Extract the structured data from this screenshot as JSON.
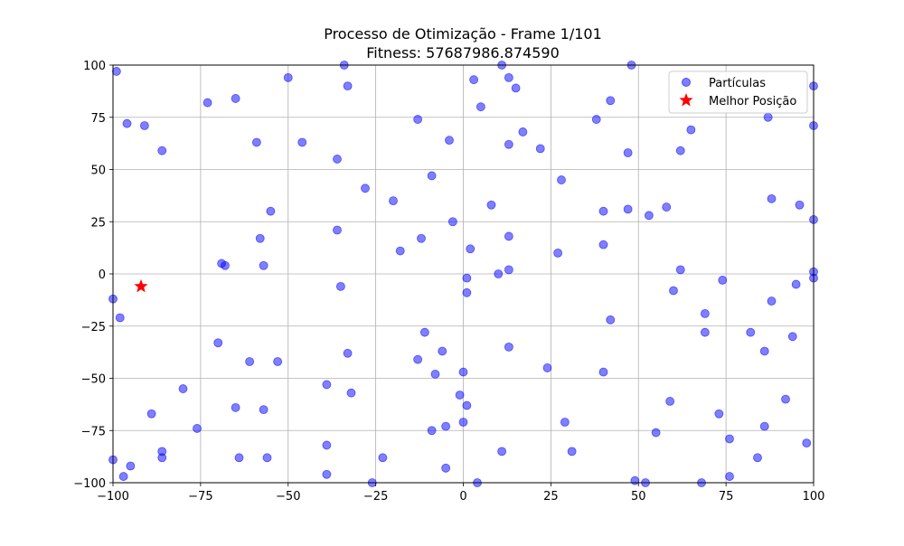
{
  "chart_data": {
    "type": "scatter",
    "title": "Processo de Otimização - Frame 1/101",
    "subtitle": "Fitness: 57687986.874590",
    "xlabel": "",
    "ylabel": "",
    "xlim": [
      -100,
      100
    ],
    "ylim": [
      -100,
      100
    ],
    "x_ticks": [
      -100,
      -75,
      -50,
      -25,
      0,
      25,
      50,
      75,
      100
    ],
    "y_ticks": [
      -100,
      -75,
      -50,
      -25,
      0,
      25,
      50,
      75,
      100
    ],
    "grid": true,
    "legend_position": "top-right",
    "series": [
      {
        "name": "Partículas",
        "marker": "circle",
        "color": "#0000ff",
        "alpha": 0.5,
        "points": [
          [
            -99,
            97
          ],
          [
            -96,
            72
          ],
          [
            -91,
            71
          ],
          [
            -86,
            59
          ],
          [
            -73,
            82
          ],
          [
            -65,
            84
          ],
          [
            -59,
            63
          ],
          [
            -50,
            94
          ],
          [
            -46,
            63
          ],
          [
            -36,
            55
          ],
          [
            -34,
            100
          ],
          [
            -33,
            90
          ],
          [
            -28,
            41
          ],
          [
            -20,
            35
          ],
          [
            -13,
            74
          ],
          [
            -9,
            47
          ],
          [
            -4,
            64
          ],
          [
            3,
            93
          ],
          [
            5,
            80
          ],
          [
            11,
            100
          ],
          [
            13,
            94
          ],
          [
            15,
            89
          ],
          [
            17,
            68
          ],
          [
            13,
            62
          ],
          [
            22,
            60
          ],
          [
            28,
            45
          ],
          [
            38,
            74
          ],
          [
            42,
            83
          ],
          [
            47,
            58
          ],
          [
            48,
            100
          ],
          [
            62,
            59
          ],
          [
            65,
            69
          ],
          [
            87,
            75
          ],
          [
            100,
            90
          ],
          [
            100,
            71
          ],
          [
            88,
            36
          ],
          [
            96,
            33
          ],
          [
            100,
            26
          ],
          [
            -69,
            5
          ],
          [
            -68,
            4
          ],
          [
            -58,
            17
          ],
          [
            -57,
            4
          ],
          [
            -55,
            30
          ],
          [
            -36,
            21
          ],
          [
            -35,
            -6
          ],
          [
            -18,
            11
          ],
          [
            -12,
            17
          ],
          [
            -3,
            25
          ],
          [
            2,
            12
          ],
          [
            8,
            33
          ],
          [
            13,
            18
          ],
          [
            27,
            10
          ],
          [
            40,
            30
          ],
          [
            40,
            14
          ],
          [
            47,
            31
          ],
          [
            53,
            28
          ],
          [
            58,
            32
          ],
          [
            62,
            2
          ],
          [
            1,
            -2
          ],
          [
            1,
            -9
          ],
          [
            10,
            0
          ],
          [
            13,
            2
          ],
          [
            60,
            -8
          ],
          [
            74,
            -3
          ],
          [
            69,
            -19
          ],
          [
            100,
            1
          ],
          [
            100,
            -2
          ],
          [
            95,
            -5
          ],
          [
            88,
            -13
          ],
          [
            -100,
            -12
          ],
          [
            -98,
            -21
          ],
          [
            -70,
            -33
          ],
          [
            -61,
            -42
          ],
          [
            -53,
            -42
          ],
          [
            -33,
            -38
          ],
          [
            -11,
            -28
          ],
          [
            -13,
            -41
          ],
          [
            -8,
            -48
          ],
          [
            -6,
            -37
          ],
          [
            0,
            -47
          ],
          [
            13,
            -35
          ],
          [
            24,
            -45
          ],
          [
            40,
            -47
          ],
          [
            42,
            -22
          ],
          [
            69,
            -28
          ],
          [
            82,
            -28
          ],
          [
            86,
            -37
          ],
          [
            94,
            -30
          ],
          [
            -39,
            -53
          ],
          [
            -32,
            -57
          ],
          [
            -65,
            -64
          ],
          [
            -57,
            -65
          ],
          [
            -80,
            -55
          ],
          [
            -89,
            -67
          ],
          [
            -76,
            -74
          ],
          [
            -1,
            -58
          ],
          [
            1,
            -63
          ],
          [
            0,
            -71
          ],
          [
            -5,
            -73
          ],
          [
            -9,
            -75
          ],
          [
            29,
            -71
          ],
          [
            59,
            -61
          ],
          [
            73,
            -67
          ],
          [
            92,
            -60
          ],
          [
            -100,
            -89
          ],
          [
            -97,
            -97
          ],
          [
            -95,
            -92
          ],
          [
            -86,
            -85
          ],
          [
            -86,
            -88
          ],
          [
            -64,
            -88
          ],
          [
            -56,
            -88
          ],
          [
            -39,
            -82
          ],
          [
            -39,
            -96
          ],
          [
            -26,
            -100
          ],
          [
            -23,
            -88
          ],
          [
            -5,
            -93
          ],
          [
            4,
            -100
          ],
          [
            11,
            -85
          ],
          [
            31,
            -85
          ],
          [
            49,
            -99
          ],
          [
            52,
            -100
          ],
          [
            55,
            -76
          ],
          [
            68,
            -100
          ],
          [
            76,
            -79
          ],
          [
            76,
            -97
          ],
          [
            84,
            -88
          ],
          [
            86,
            -73
          ],
          [
            98,
            -81
          ]
        ]
      },
      {
        "name": "Melhor Posição",
        "marker": "star",
        "color": "#ff0000",
        "points": [
          [
            -92,
            -6
          ]
        ]
      }
    ]
  }
}
